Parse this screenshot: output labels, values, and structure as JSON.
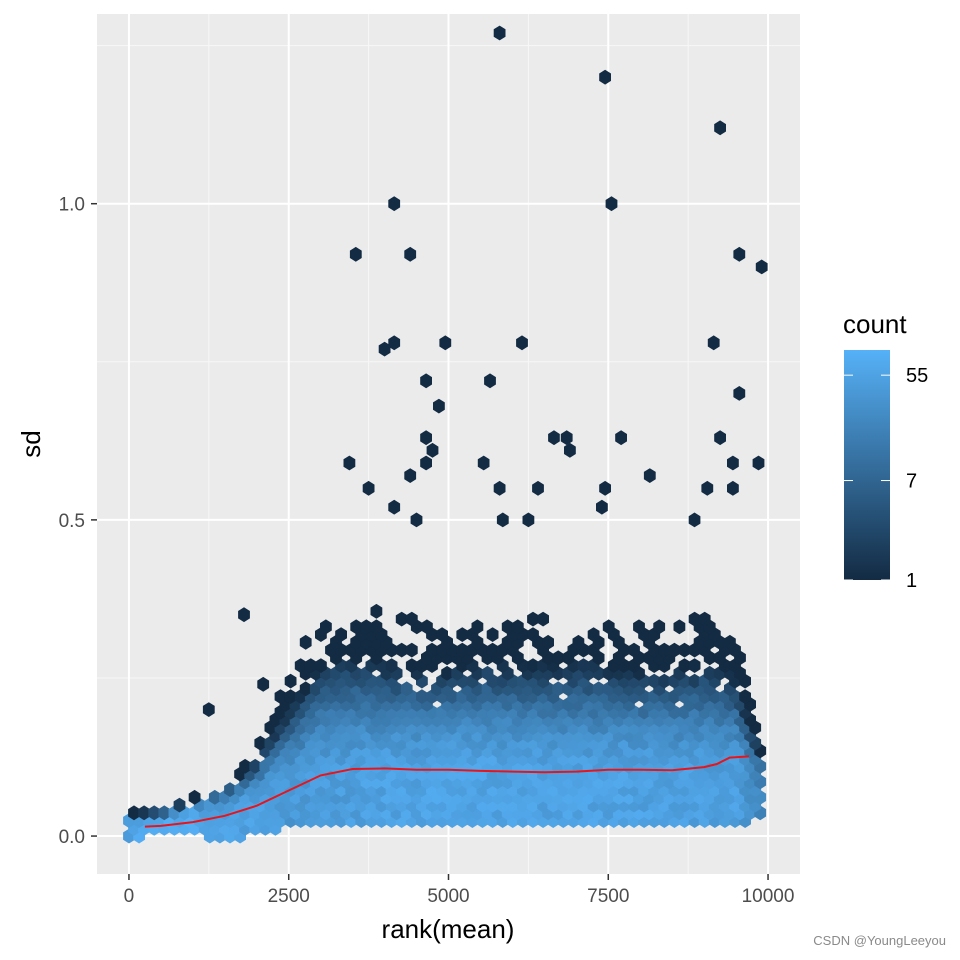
{
  "chart_data": {
    "type": "heatmap",
    "subtype": "hexbin",
    "xlabel": "rank(mean)",
    "ylabel": "sd",
    "xlim": [
      -500,
      10500
    ],
    "ylim": [
      -0.06,
      1.3
    ],
    "x_ticks": [
      0,
      2500,
      5000,
      7500,
      10000
    ],
    "y_ticks": [
      0.0,
      0.5,
      1.0
    ],
    "y_tick_labels": [
      "0.0",
      "0.5",
      "1.0"
    ],
    "grid": true,
    "legend": {
      "title": "count",
      "position": "right",
      "scale": "log",
      "breaks": [
        1,
        7,
        55
      ],
      "range": [
        1,
        90
      ],
      "low_color": "#132B43",
      "high_color": "#56B1F7"
    },
    "outlier_points": [
      {
        "x": 5800,
        "y": 1.27
      },
      {
        "x": 7450,
        "y": 1.2
      },
      {
        "x": 9250,
        "y": 1.12
      },
      {
        "x": 4150,
        "y": 1.0
      },
      {
        "x": 7550,
        "y": 1.0
      },
      {
        "x": 3550,
        "y": 0.92
      },
      {
        "x": 4400,
        "y": 0.92
      },
      {
        "x": 9550,
        "y": 0.92
      },
      {
        "x": 9900,
        "y": 0.9
      },
      {
        "x": 4150,
        "y": 0.78
      },
      {
        "x": 4950,
        "y": 0.78
      },
      {
        "x": 6150,
        "y": 0.78
      },
      {
        "x": 9150,
        "y": 0.78
      },
      {
        "x": 4000,
        "y": 0.77
      },
      {
        "x": 4650,
        "y": 0.72
      },
      {
        "x": 5650,
        "y": 0.72
      },
      {
        "x": 9550,
        "y": 0.7
      },
      {
        "x": 4850,
        "y": 0.68
      },
      {
        "x": 6650,
        "y": 0.63
      },
      {
        "x": 6850,
        "y": 0.63
      },
      {
        "x": 7700,
        "y": 0.63
      },
      {
        "x": 9250,
        "y": 0.63
      },
      {
        "x": 4650,
        "y": 0.63
      },
      {
        "x": 4750,
        "y": 0.61
      },
      {
        "x": 6900,
        "y": 0.61
      },
      {
        "x": 4650,
        "y": 0.59
      },
      {
        "x": 3450,
        "y": 0.59
      },
      {
        "x": 5550,
        "y": 0.59
      },
      {
        "x": 9450,
        "y": 0.59
      },
      {
        "x": 9850,
        "y": 0.59
      },
      {
        "x": 4400,
        "y": 0.57
      },
      {
        "x": 8150,
        "y": 0.57
      },
      {
        "x": 3750,
        "y": 0.55
      },
      {
        "x": 5800,
        "y": 0.55
      },
      {
        "x": 6400,
        "y": 0.55
      },
      {
        "x": 7450,
        "y": 0.55
      },
      {
        "x": 9050,
        "y": 0.55
      },
      {
        "x": 9450,
        "y": 0.55
      },
      {
        "x": 4150,
        "y": 0.52
      },
      {
        "x": 7400,
        "y": 0.52
      },
      {
        "x": 4500,
        "y": 0.5
      },
      {
        "x": 5850,
        "y": 0.5
      },
      {
        "x": 6250,
        "y": 0.5
      },
      {
        "x": 8850,
        "y": 0.5
      },
      {
        "x": 1250,
        "y": 0.2
      },
      {
        "x": 1800,
        "y": 0.35
      },
      {
        "x": 2100,
        "y": 0.24
      }
    ],
    "density_envelope": {
      "x": [
        0,
        500,
        1000,
        1500,
        2000,
        2500,
        3000,
        3500,
        4000,
        4500,
        5000,
        5500,
        6000,
        6500,
        7000,
        7500,
        8000,
        8500,
        9000,
        9500,
        10000
      ],
      "y_low": [
        0.0,
        0.01,
        0.01,
        0.0,
        0.01,
        0.02,
        0.02,
        0.02,
        0.02,
        0.02,
        0.02,
        0.02,
        0.02,
        0.02,
        0.02,
        0.02,
        0.02,
        0.02,
        0.02,
        0.02,
        0.04
      ],
      "y_high": [
        0.04,
        0.05,
        0.07,
        0.09,
        0.15,
        0.26,
        0.36,
        0.38,
        0.36,
        0.35,
        0.34,
        0.36,
        0.36,
        0.35,
        0.36,
        0.35,
        0.34,
        0.34,
        0.36,
        0.33,
        0.1
      ],
      "peak_y": [
        0.02,
        0.02,
        0.03,
        0.04,
        0.06,
        0.08,
        0.09,
        0.09,
        0.09,
        0.09,
        0.09,
        0.09,
        0.09,
        0.09,
        0.09,
        0.09,
        0.09,
        0.09,
        0.09,
        0.09,
        0.09
      ],
      "peak_count": [
        60,
        70,
        70,
        60,
        50,
        40,
        45,
        50,
        55,
        55,
        60,
        60,
        55,
        55,
        55,
        55,
        55,
        50,
        50,
        50,
        10
      ]
    },
    "series": [
      {
        "type": "line",
        "color": "#E8141C",
        "x": [
          250,
          500,
          1000,
          1500,
          2000,
          2500,
          3000,
          3500,
          4000,
          4500,
          5000,
          5500,
          6000,
          6500,
          7000,
          7500,
          8000,
          8500,
          9000,
          9200,
          9400,
          9700
        ],
        "y": [
          0.015,
          0.016,
          0.022,
          0.032,
          0.048,
          0.072,
          0.096,
          0.106,
          0.107,
          0.105,
          0.105,
          0.103,
          0.102,
          0.101,
          0.102,
          0.105,
          0.105,
          0.104,
          0.109,
          0.114,
          0.124,
          0.126
        ]
      }
    ]
  },
  "watermark": "CSDN @YoungLeeyou"
}
